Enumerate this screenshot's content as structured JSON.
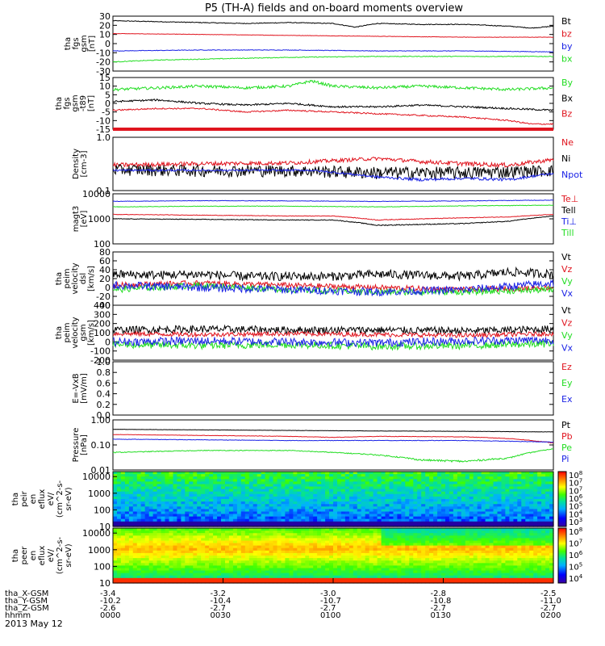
{
  "title": "P5 (TH-A) fields and on-board moments overview",
  "date": "2013 May 12",
  "colors": {
    "black": "#000000",
    "red": "#e0141e",
    "green": "#22dd22",
    "blue": "#1a22e6",
    "axis": "#000000"
  },
  "chart_data": {
    "type": "line",
    "time_axis": {
      "ticks": [
        "0000",
        "0030",
        "0100",
        "0130",
        "0200"
      ],
      "tick_fraction": [
        0.0,
        0.25,
        0.5,
        0.75,
        1.0
      ],
      "rows": [
        {
          "label": "tha_X-GSM",
          "values": [
            "-3.4",
            "-3.2",
            "-3.0",
            "-2.8",
            "-2.5"
          ]
        },
        {
          "label": "tha_Y-GSM",
          "values": [
            "-10.2",
            "-10.4",
            "-10.7",
            "-10.8",
            "-11.0"
          ]
        },
        {
          "label": "tha_Z-GSM",
          "values": [
            "-2.6",
            "-2.7",
            "-2.7",
            "-2.7",
            "-2.7"
          ]
        },
        {
          "label": "hhmm",
          "values": [
            "0000",
            "0030",
            "0100",
            "0130",
            "0200"
          ]
        }
      ]
    },
    "panels": [
      {
        "id": "p1",
        "ylabel": [
          "tha",
          "fgs",
          "gsm",
          "[nT]"
        ],
        "yticks": [
          "30",
          "20",
          "10",
          "0",
          "-10",
          "-20",
          "-30"
        ],
        "ylim": [
          -30,
          30
        ],
        "scale": "linear",
        "series": [
          {
            "name": "Bt",
            "color": "black",
            "x": [
              0,
              0.1,
              0.2,
              0.3,
              0.4,
              0.5,
              0.55,
              0.6,
              0.7,
              0.8,
              0.9,
              0.95,
              1.0
            ],
            "y": [
              25,
              24,
              23,
              22,
              23,
              22,
              18,
              22,
              21,
              21,
              19,
              17,
              19
            ],
            "noise": 0.4
          },
          {
            "name": "bz",
            "color": "red",
            "x": [
              0,
              0.2,
              0.4,
              0.6,
              0.8,
              1.0
            ],
            "y": [
              11,
              10,
              9,
              8,
              7,
              7
            ],
            "noise": 0.2
          },
          {
            "name": "by",
            "color": "blue",
            "x": [
              0,
              0.2,
              0.4,
              0.6,
              0.8,
              1.0
            ],
            "y": [
              -8,
              -7,
              -7,
              -8,
              -8,
              -9
            ],
            "noise": 0.3
          },
          {
            "name": "bx",
            "color": "green",
            "x": [
              0,
              0.1,
              0.2,
              0.4,
              0.6,
              0.8,
              1.0
            ],
            "y": [
              -20,
              -18,
              -17,
              -15,
              -14,
              -14,
              -14
            ],
            "noise": 0.4
          }
        ]
      },
      {
        "id": "p2",
        "ylabel": [
          "tha",
          "fgs",
          "gsm",
          "-t89"
        ],
        "yunit": "[nT]",
        "yticks": [
          "15",
          "10",
          "5",
          "0",
          "-5",
          "-10",
          "-15"
        ],
        "ylim": [
          -15,
          15
        ],
        "scale": "linear",
        "series": [
          {
            "name": "By",
            "color": "green",
            "x": [
              0,
              0.1,
              0.2,
              0.3,
              0.4,
              0.45,
              0.5,
              0.6,
              0.7,
              0.8,
              0.9,
              1.0
            ],
            "y": [
              8,
              9,
              10,
              9,
              10,
              13,
              10,
              9,
              10,
              9,
              8,
              9
            ],
            "noise": 0.8
          },
          {
            "name": "Bx",
            "color": "black",
            "x": [
              0,
              0.1,
              0.2,
              0.3,
              0.4,
              0.5,
              0.6,
              0.7,
              0.8,
              0.9,
              1.0
            ],
            "y": [
              1,
              2,
              0,
              -1,
              0,
              -2,
              -2,
              -1,
              -2,
              -3,
              -4
            ],
            "noise": 0.5
          },
          {
            "name": "Bz",
            "color": "red",
            "x": [
              0,
              0.1,
              0.2,
              0.3,
              0.4,
              0.5,
              0.6,
              0.7,
              0.8,
              0.9,
              0.95,
              1.0
            ],
            "y": [
              -4,
              -3,
              -3,
              -5,
              -4,
              -5,
              -6,
              -7,
              -8,
              -10,
              -12,
              -12
            ],
            "noise": 0.4
          }
        ]
      },
      {
        "id": "p3",
        "ylabel": [
          "Density",
          "[cm-3]"
        ],
        "yticks": [
          "1.0",
          "0.1"
        ],
        "ylim": [
          0.1,
          1.0
        ],
        "scale": "log",
        "series": [
          {
            "name": "Ne",
            "color": "red",
            "x": [
              0,
              0.2,
              0.4,
              0.6,
              0.7,
              0.8,
              0.9,
              1.0
            ],
            "y": [
              0.3,
              0.32,
              0.33,
              0.4,
              0.35,
              0.32,
              0.3,
              0.38
            ],
            "noise": 0.03
          },
          {
            "name": "Ni",
            "color": "black",
            "x": [
              0,
              0.2,
              0.4,
              0.6,
              0.8,
              1.0
            ],
            "y": [
              0.25,
              0.24,
              0.24,
              0.22,
              0.22,
              0.24
            ],
            "noise": 0.06
          },
          {
            "name": "Npot",
            "color": "blue",
            "x": [
              0,
              0.2,
              0.45,
              0.6,
              0.7,
              0.8,
              0.9,
              1.0
            ],
            "y": [
              0.24,
              0.24,
              0.24,
              0.18,
              0.16,
              0.17,
              0.16,
              0.21
            ],
            "noise": 0.01
          }
        ]
      },
      {
        "id": "p4",
        "ylabel": [
          "magt3",
          "[eV]"
        ],
        "yticks": [
          "10000",
          "1000",
          "100"
        ],
        "ylim": [
          100,
          10000
        ],
        "scale": "log",
        "series": [
          {
            "name": "Te⊥",
            "color": "red",
            "x": [
              0,
              0.2,
              0.4,
              0.5,
              0.6,
              0.7,
              0.8,
              0.9,
              1.0
            ],
            "y": [
              1500,
              1400,
              1300,
              1300,
              900,
              1000,
              1100,
              1200,
              1500
            ],
            "noise": 30
          },
          {
            "name": "Tell",
            "color": "black",
            "x": [
              0,
              0.2,
              0.4,
              0.5,
              0.6,
              0.7,
              0.8,
              0.9,
              1.0
            ],
            "y": [
              1000,
              950,
              900,
              900,
              550,
              600,
              650,
              800,
              1300
            ],
            "noise": 25
          },
          {
            "name": "Ti⊥",
            "color": "blue",
            "x": [
              0,
              0.2,
              0.4,
              0.6,
              0.8,
              1.0
            ],
            "y": [
              5000,
              5300,
              5200,
              5000,
              5200,
              5600
            ],
            "noise": 120
          },
          {
            "name": "Till",
            "color": "green",
            "x": [
              0,
              0.2,
              0.4,
              0.6,
              0.8,
              1.0
            ],
            "y": [
              3000,
              3200,
              3200,
              3000,
              3300,
              3500
            ],
            "noise": 80
          }
        ]
      },
      {
        "id": "p5",
        "ylabel": [
          "tha",
          "peim",
          "velocity",
          "dsl",
          "[km/s]"
        ],
        "yticks": [
          "80",
          "60",
          "40",
          "20",
          "0",
          "-20",
          "-40"
        ],
        "ylim": [
          -40,
          80
        ],
        "scale": "linear",
        "series": [
          {
            "name": "Vt",
            "color": "black",
            "x": [
              0,
              0.1,
              0.2,
              0.3,
              0.5,
              0.6,
              0.8,
              0.9,
              1.0
            ],
            "y": [
              30,
              28,
              30,
              25,
              25,
              30,
              25,
              35,
              30
            ],
            "noise": 10
          },
          {
            "name": "Vz",
            "color": "red",
            "x": [
              0,
              0.1,
              0.2,
              0.4,
              0.6,
              0.8,
              1.0
            ],
            "y": [
              5,
              8,
              10,
              5,
              0,
              -5,
              0
            ],
            "noise": 6
          },
          {
            "name": "Vy",
            "color": "green",
            "x": [
              0,
              0.1,
              0.2,
              0.4,
              0.6,
              0.8,
              1.0
            ],
            "y": [
              -5,
              0,
              5,
              -5,
              -10,
              -10,
              -5
            ],
            "noise": 7
          },
          {
            "name": "Vx",
            "color": "blue",
            "x": [
              0,
              0.2,
              0.4,
              0.6,
              0.8,
              1.0
            ],
            "y": [
              5,
              0,
              -5,
              -10,
              -5,
              10
            ],
            "noise": 9
          }
        ]
      },
      {
        "id": "p6",
        "ylabel": [
          "tha",
          "peim",
          "velocity",
          "gsm",
          "[km/s]"
        ],
        "yticks": [
          "400",
          "300",
          "200",
          "100",
          "0",
          "-100",
          "-200"
        ],
        "ylim": [
          -200,
          400
        ],
        "scale": "linear",
        "series": [
          {
            "name": "Vt",
            "color": "black",
            "x": [
              0,
              0.2,
              0.4,
              0.6,
              0.8,
              1.0
            ],
            "y": [
              130,
              140,
              130,
              130,
              120,
              140
            ],
            "noise": 40
          },
          {
            "name": "Vz",
            "color": "red",
            "x": [
              0,
              0.2,
              0.4,
              0.6,
              0.8,
              1.0
            ],
            "y": [
              90,
              80,
              90,
              80,
              70,
              90
            ],
            "noise": 25
          },
          {
            "name": "Vy",
            "color": "green",
            "x": [
              0,
              0.2,
              0.4,
              0.6,
              0.8,
              1.0
            ],
            "y": [
              -30,
              -40,
              -30,
              -50,
              -40,
              -20
            ],
            "noise": 40
          },
          {
            "name": "Vx",
            "color": "blue",
            "x": [
              0,
              0.2,
              0.4,
              0.6,
              0.8,
              1.0
            ],
            "y": [
              0,
              10,
              0,
              -10,
              10,
              20
            ],
            "noise": 45
          }
        ]
      },
      {
        "id": "p7",
        "ylabel": [
          "E=-VxB",
          "[mV/m]"
        ],
        "yticks": [
          "1.0",
          "0.8",
          "0.6",
          "0.4",
          "0.2",
          "0.0"
        ],
        "ylim": [
          0,
          1
        ],
        "scale": "linear",
        "series": [
          {
            "name": "Ez",
            "color": "red"
          },
          {
            "name": "Ey",
            "color": "green"
          },
          {
            "name": "Ex",
            "color": "blue"
          }
        ]
      },
      {
        "id": "p8",
        "ylabel": [
          "Pressure",
          "[nPa]"
        ],
        "yticks": [
          "1.00",
          "0.10",
          "0.01"
        ],
        "ylim": [
          0.01,
          1.0
        ],
        "scale": "log",
        "series": [
          {
            "name": "Pt",
            "color": "black",
            "x": [
              0,
              0.2,
              0.4,
              0.6,
              0.8,
              1.0
            ],
            "y": [
              0.42,
              0.4,
              0.38,
              0.36,
              0.35,
              0.33
            ],
            "noise": 0.005
          },
          {
            "name": "Pb",
            "color": "red",
            "x": [
              0,
              0.2,
              0.4,
              0.5,
              0.6,
              0.8,
              0.9,
              1.0
            ],
            "y": [
              0.26,
              0.24,
              0.22,
              0.2,
              0.22,
              0.21,
              0.18,
              0.12
            ],
            "noise": 0.004
          },
          {
            "name": "Pe",
            "color": "green",
            "x": [
              0,
              0.2,
              0.4,
              0.6,
              0.7,
              0.8,
              0.9,
              1.0
            ],
            "y": [
              0.05,
              0.06,
              0.06,
              0.04,
              0.025,
              0.022,
              0.03,
              0.07
            ],
            "noise": 0.002
          },
          {
            "name": "Pi",
            "color": "blue",
            "x": [
              0,
              0.2,
              0.4,
              0.6,
              0.8,
              1.0
            ],
            "y": [
              0.17,
              0.16,
              0.15,
              0.15,
              0.15,
              0.13
            ],
            "noise": 0.003
          }
        ]
      }
    ],
    "spectrograms": [
      {
        "id": "s1",
        "ylabel": [
          "tha",
          "peir",
          "en",
          "eflux",
          "eV/",
          "(cm^2-s-",
          "sr-eV)"
        ],
        "yticks": [
          "10000",
          "1000",
          "100",
          "10"
        ],
        "ylim": [
          10,
          20000
        ],
        "scale": "log",
        "colorbar_labels": [
          "10^8",
          "10^7",
          "10^7",
          "10^6",
          "10^5",
          "10^4",
          "10^3"
        ],
        "type": "heatmap"
      },
      {
        "id": "s2",
        "ylabel": [
          "tha",
          "peer",
          "en",
          "eflux",
          "eV/",
          "(cm^2-s-",
          "sr-eV)"
        ],
        "yticks": [
          "10000",
          "1000",
          "100",
          "10"
        ],
        "ylim": [
          10,
          20000
        ],
        "scale": "log",
        "colorbar_labels": [
          "10^8",
          "10^7",
          "10^6",
          "10^5",
          "10^4"
        ],
        "type": "heatmap"
      }
    ]
  }
}
